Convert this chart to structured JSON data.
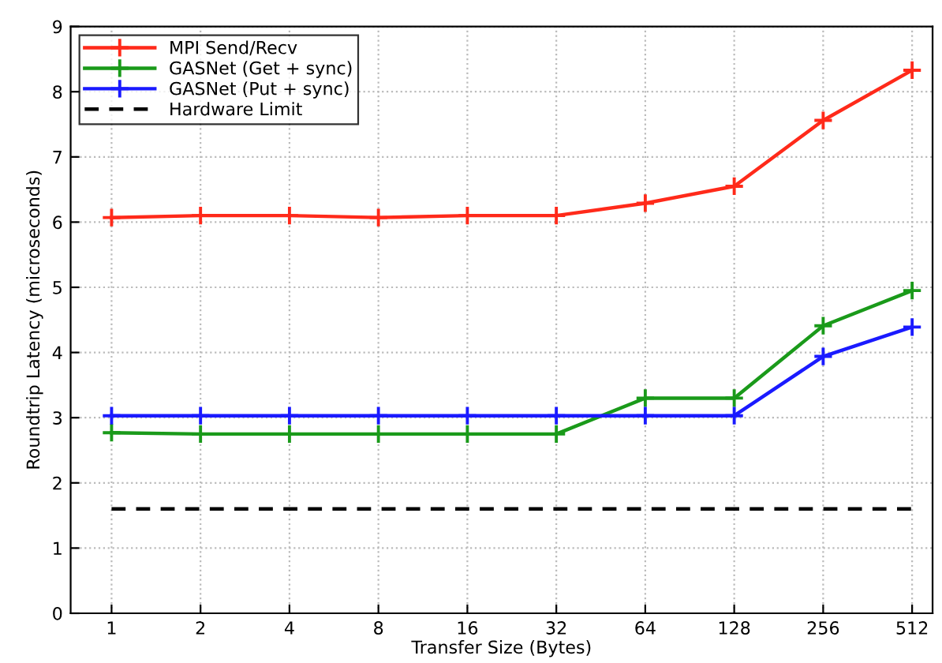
{
  "chart_data": {
    "type": "line",
    "xlabel": "Transfer Size (Bytes)",
    "ylabel": "Roundtrip Latency (microseconds)",
    "categories": [
      "1",
      "2",
      "4",
      "8",
      "16",
      "32",
      "64",
      "128",
      "256",
      "512"
    ],
    "series": [
      {
        "name": "MPI Send/Recv",
        "color": "#ff2a1a",
        "marker": "cross",
        "line_style": "solid",
        "values": [
          6.07,
          6.1,
          6.1,
          6.07,
          6.1,
          6.1,
          6.29,
          6.55,
          7.56,
          8.33
        ]
      },
      {
        "name": "GASNet (Get + sync)",
        "color": "#1a9a1a",
        "marker": "cross",
        "line_style": "solid",
        "values": [
          2.77,
          2.75,
          2.75,
          2.75,
          2.75,
          2.75,
          3.3,
          3.3,
          4.41,
          4.95
        ]
      },
      {
        "name": "GASNet (Put + sync)",
        "color": "#1a1aff",
        "marker": "cross",
        "line_style": "solid",
        "values": [
          3.03,
          3.03,
          3.03,
          3.03,
          3.03,
          3.03,
          3.03,
          3.03,
          3.94,
          4.39
        ]
      },
      {
        "name": "Hardware Limit",
        "color": "#000000",
        "marker": "none",
        "line_style": "dashed",
        "values": [
          1.6,
          1.6,
          1.6,
          1.6,
          1.6,
          1.6,
          1.6,
          1.6,
          1.6,
          1.6
        ]
      }
    ],
    "ylim": [
      0,
      9
    ],
    "yticks": [
      0,
      1,
      2,
      3,
      4,
      5,
      6,
      7,
      8,
      9
    ],
    "grid": true,
    "legend": "top left"
  }
}
